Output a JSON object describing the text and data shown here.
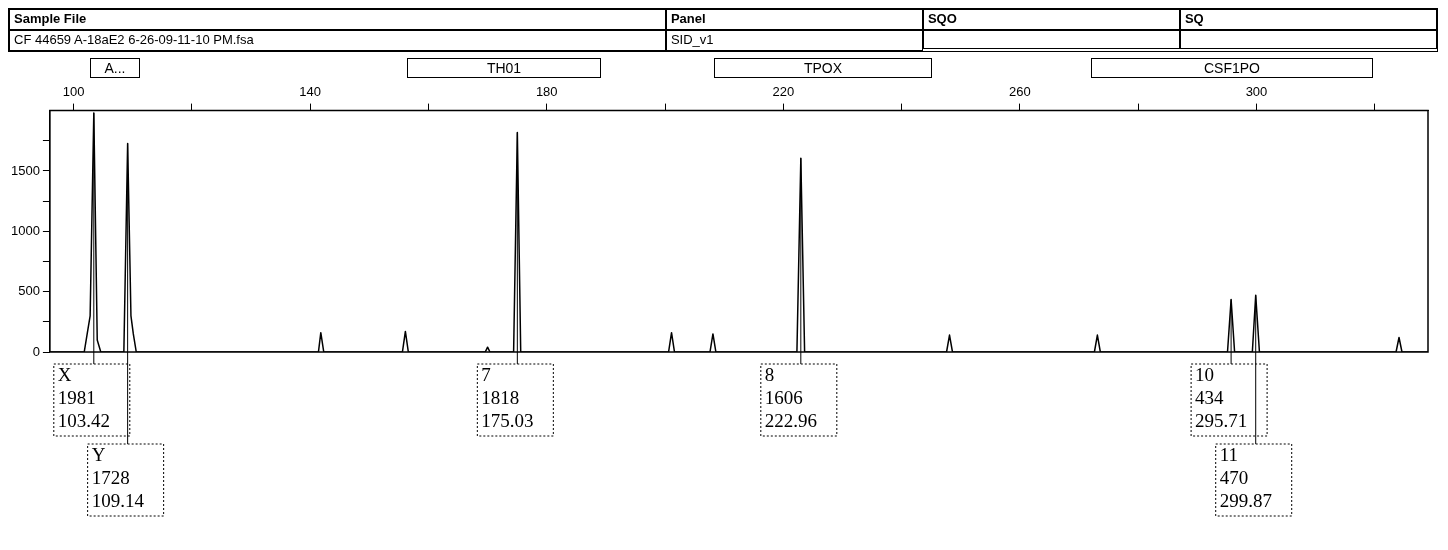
{
  "chart_data": {
    "type": "line",
    "x": [
      96,
      100,
      101.8,
      102.3,
      102.8,
      103.42,
      104.0,
      104.6,
      108.5,
      109.14,
      109.7,
      110.1,
      110.6,
      141.4,
      141.8,
      142.3,
      155.6,
      156.1,
      156.6,
      169.6,
      170,
      170.4,
      174.4,
      175.03,
      175.6,
      200.6,
      201.1,
      201.6,
      207.6,
      208.1,
      208.6,
      222.3,
      222.96,
      223.6,
      247.6,
      248.1,
      248.6,
      272.6,
      273.1,
      273.6,
      295.1,
      295.71,
      296.3,
      299.3,
      299.87,
      300.5,
      323.6,
      324.1,
      324.6,
      329
    ],
    "series": [
      {
        "color": "#000000",
        "values": [
          0,
          0,
          0,
          150,
          300,
          1981,
          100,
          0,
          0,
          1728,
          300,
          150,
          0,
          0,
          160,
          0,
          0,
          170,
          0,
          0,
          40,
          0,
          0,
          1818,
          0,
          0,
          160,
          0,
          0,
          150,
          0,
          0,
          1606,
          0,
          0,
          140,
          0,
          0,
          140,
          0,
          0,
          434,
          0,
          0,
          470,
          0,
          0,
          120,
          0,
          0
        ]
      }
    ],
    "xlim": [
      96,
      329
    ],
    "xticks": [
      100,
      {
        "value": 120,
        "label": null
      },
      140,
      {
        "value": 160,
        "label": null
      },
      180,
      {
        "value": 200,
        "label": null
      },
      220,
      {
        "value": 240,
        "label": null
      },
      260,
      {
        "value": 280,
        "label": null
      },
      300,
      {
        "value": 320,
        "label": null
      }
    ],
    "ylim": [
      0,
      2000
    ],
    "yticks": [
      0,
      {
        "value": 250,
        "label": null
      },
      500,
      {
        "value": 750,
        "label": null
      },
      1000,
      {
        "value": 1250,
        "label": null
      },
      1500,
      {
        "value": 1750,
        "label": null
      }
    ],
    "grid": false,
    "legend": false,
    "marker": "none",
    "line_style": "solid",
    "annotations": [
      "Sample File",
      "Panel",
      "SQO",
      "SQ",
      "CF 44659 A-18aE2 6-26-09-11-10 PM.fsa",
      "SID_v1",
      "A...",
      "TH01",
      "TPOX",
      "CSF1PO",
      {
        "text": "X\n1981\n103.42",
        "x": 103.42,
        "y": 1981
      },
      {
        "text": "Y\n1728\n109.14",
        "x": 109.14,
        "y": 1728
      },
      {
        "text": "7\n1818\n175.03",
        "x": 175.03,
        "y": 1818
      },
      {
        "text": "8\n1606\n222.96",
        "x": 222.96,
        "y": 1606
      },
      {
        "text": "10\n434\n295.71",
        "x": 295.71,
        "y": 434
      },
      {
        "text": "11\n470\n299.87",
        "x": 299.87,
        "y": 470
      }
    ]
  }
}
